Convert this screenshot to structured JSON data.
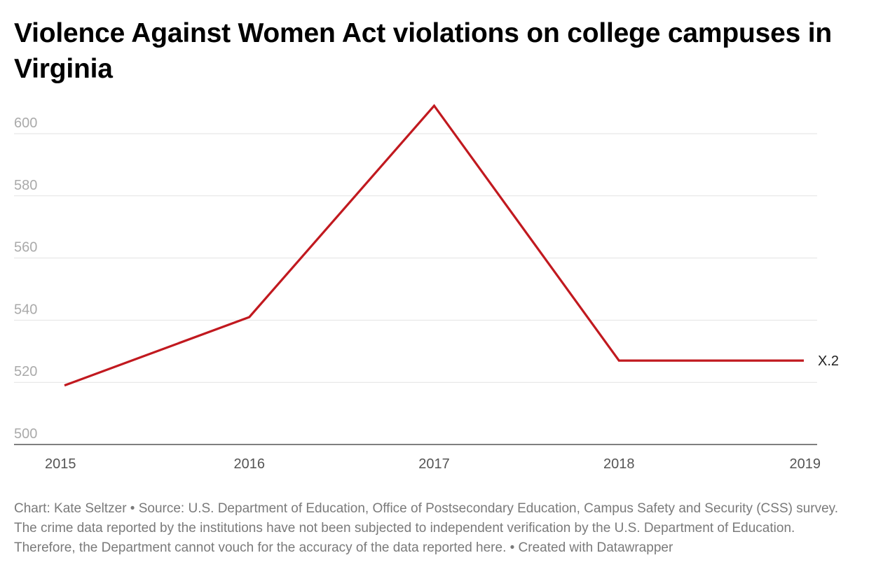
{
  "chart_data": {
    "type": "line",
    "title": "Violence Against Women Act violations on college campuses in Virginia",
    "x": [
      "2015",
      "2016",
      "2017",
      "2018",
      "2019"
    ],
    "series": [
      {
        "name": "X.2",
        "values": [
          519,
          541,
          609,
          527,
          527
        ],
        "color": "#c1191f"
      }
    ],
    "y_ticks": [
      500,
      520,
      540,
      560,
      580,
      600
    ],
    "ylim": [
      500,
      609
    ],
    "xlabel": "",
    "ylabel": "",
    "grid": true
  },
  "footer": {
    "text": "Chart: Kate Seltzer • Source: U.S. Department of Education, Office of Postsecondary Education, Campus Safety and Security (CSS) survey. The crime data reported by the institutions have not been subjected to independent verification by the U.S. Department of Education. Therefore, the Department cannot vouch for the accuracy of the data reported here. • Created with Datawrapper"
  },
  "colors": {
    "line": "#c1191f",
    "grid": "#e2e2e2",
    "axis": "#333333",
    "tick_text": "#aaaaaa",
    "footer_text": "#7a7a7a"
  }
}
